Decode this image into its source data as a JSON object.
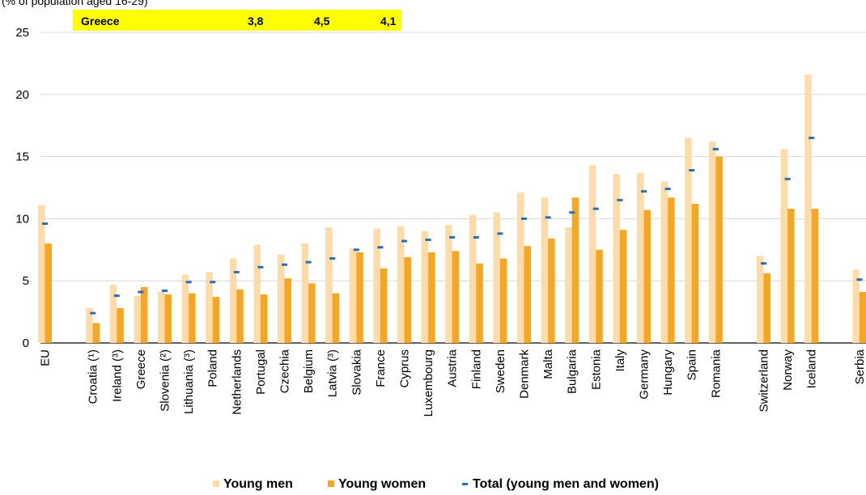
{
  "header_fragment": "(% of population aged 16-29)",
  "highlight_row": {
    "label": "Greece",
    "values": [
      "3,8",
      "4,5",
      "4,1"
    ]
  },
  "colors": {
    "men": "#fddcaa",
    "women": "#f7a623",
    "total": "#2a6ebb",
    "highlight_bg": "#ffff00",
    "grid": "#d0d0d0"
  },
  "chart_data": {
    "type": "bar",
    "ylim": [
      0,
      25
    ],
    "yticks": [
      0,
      5,
      10,
      15,
      20,
      25
    ],
    "grid": true,
    "legend_position": "bottom",
    "categories": [
      "EU",
      "",
      "Croatia (¹)",
      "Ireland (³)",
      "Greece",
      "Slovenia (²)",
      "Lithuania (³)",
      "Poland",
      "Netherlands",
      "Portugal",
      "Czechia",
      "Belgium",
      "Latvia (³)",
      "Slovakia",
      "France",
      "Cyprus",
      "Luxembourg",
      "Austria",
      "Finland",
      "Sweden",
      "Denmark",
      "Malta",
      "Bulgaria",
      "Estonia",
      "Italy",
      "Germany",
      "Hungary",
      "Spain",
      "Romania",
      "",
      "Switzerland",
      "Norway",
      "Iceland",
      "",
      "Serbia"
    ],
    "series": [
      {
        "name": "Young men",
        "kind": "bar",
        "values": [
          11.1,
          null,
          2.8,
          4.7,
          3.8,
          4.1,
          5.5,
          5.7,
          6.8,
          7.9,
          7.1,
          8.0,
          9.3,
          7.6,
          9.2,
          9.4,
          9.0,
          9.5,
          10.3,
          10.5,
          12.1,
          11.7,
          9.3,
          14.3,
          13.6,
          13.7,
          13.0,
          16.5,
          16.2,
          null,
          7.0,
          15.6,
          21.6,
          null,
          5.9
        ]
      },
      {
        "name": "Young women",
        "kind": "bar",
        "values": [
          8.0,
          null,
          1.6,
          2.8,
          4.5,
          3.9,
          4.0,
          3.7,
          4.3,
          3.9,
          5.2,
          4.8,
          4.0,
          7.3,
          6.0,
          6.9,
          7.3,
          7.4,
          6.4,
          6.8,
          7.8,
          8.4,
          11.7,
          7.5,
          9.1,
          10.7,
          11.7,
          11.2,
          15.0,
          null,
          5.6,
          10.8,
          10.8,
          null,
          4.1
        ]
      },
      {
        "name": "Total (young men and women)",
        "kind": "marker",
        "values": [
          9.6,
          null,
          2.4,
          3.8,
          4.1,
          4.2,
          4.9,
          4.9,
          5.7,
          6.1,
          6.3,
          6.5,
          6.8,
          7.5,
          7.7,
          8.2,
          8.3,
          8.5,
          8.5,
          8.8,
          10.0,
          10.1,
          10.5,
          10.8,
          11.5,
          12.2,
          12.4,
          13.9,
          15.6,
          null,
          6.4,
          13.2,
          16.5,
          null,
          5.1
        ]
      }
    ]
  }
}
